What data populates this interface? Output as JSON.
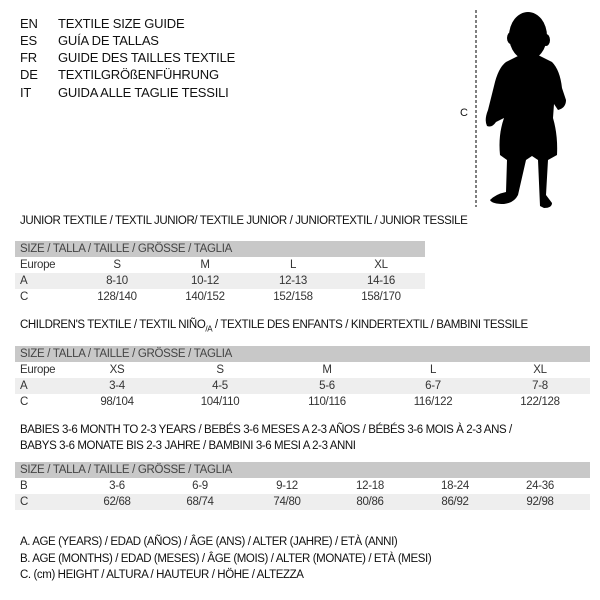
{
  "header": {
    "languages": [
      {
        "code": "EN",
        "text": "TEXTILE SIZE GUIDE"
      },
      {
        "code": "ES",
        "text": "GUÍA DE TALLAS"
      },
      {
        "code": "FR",
        "text": "GUIDE DES TAILLES TEXTILE"
      },
      {
        "code": "DE",
        "text": "TEXTILGRÖßENFÜHRUNG"
      },
      {
        "code": "IT",
        "text": "GUIDA ALLE TAGLIE TESSILI"
      }
    ],
    "figure_label": "C"
  },
  "size_header": "SIZE / TALLA / TAILLE / GRÖSSE / TAGLIA",
  "junior": {
    "title": "JUNIOR TEXTILE / TEXTIL JUNIOR/ TEXTILE JUNIOR / JUNIORTEXTIL / JUNIOR TESSILE",
    "rows": [
      {
        "label": "Europe",
        "values": [
          "S",
          "M",
          "L",
          "XL"
        ]
      },
      {
        "label": "A",
        "values": [
          "8-10",
          "10-12",
          "12-13",
          "14-16"
        ]
      },
      {
        "label": "C",
        "values": [
          "128/140",
          "140/152",
          "152/158",
          "158/170"
        ]
      }
    ]
  },
  "children": {
    "title_pre": "CHILDREN'S TEXTILE / TEXTIL NIÑO",
    "title_sub": "/A",
    "title_post": " / TEXTILE DES ENFANTS / KINDERTEXTIL / BAMBINI TESSILE",
    "rows": [
      {
        "label": "Europe",
        "values": [
          "XS",
          "S",
          "M",
          "L",
          "XL"
        ]
      },
      {
        "label": "A",
        "values": [
          "3-4",
          "4-5",
          "5-6",
          "6-7",
          "7-8"
        ]
      },
      {
        "label": "C",
        "values": [
          "98/104",
          "104/110",
          "110/116",
          "116/122",
          "122/128"
        ]
      }
    ]
  },
  "babies": {
    "title_line1": "BABIES 3-6 MONTH TO 2-3 YEARS / BEBÉS 3-6 MESES A 2-3 AÑOS / BÉBÉS 3-6 MOIS À 2-3 ANS /",
    "title_line2": "BABYS 3-6 MONATE BIS 2-3 JAHRE / BAMBINI 3-6 MESI A 2-3 ANNI",
    "rows": [
      {
        "label": "B",
        "values": [
          "3-6",
          "6-9",
          "9-12",
          "12-18",
          "18-24",
          "24-36"
        ]
      },
      {
        "label": "C",
        "values": [
          "62/68",
          "68/74",
          "74/80",
          "80/86",
          "86/92",
          "92/98"
        ]
      }
    ]
  },
  "legend": [
    "A. AGE (YEARS) / EDAD (AÑOS) / ÂGE (ANS) / ALTER (JAHRE) / ETÀ (ANNI)",
    "B. AGE (MONTHS) / EDAD (MESES) / ÂGE (MOIS) / ALTER (MONATE) / ETÀ (MESI)",
    "C. (cm) HEIGHT / ALTURA / HAUTEUR / HÖHE / ALTEZZA"
  ]
}
